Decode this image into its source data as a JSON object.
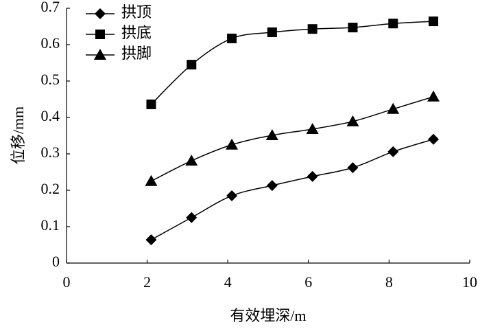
{
  "chart_data": {
    "type": "line",
    "x_label": "有效埋深/m",
    "y_label": "位移/mm",
    "x": [
      2.1,
      3.1,
      4.1,
      5.1,
      6.1,
      7.1,
      8.1,
      9.1
    ],
    "series": [
      {
        "name": "拱顶",
        "color": "#000000",
        "marker": "diamond",
        "values": [
          0.064,
          0.125,
          0.185,
          0.213,
          0.238,
          0.262,
          0.306,
          0.34
        ]
      },
      {
        "name": "拱底",
        "color": "#000000",
        "marker": "square",
        "values": [
          0.436,
          0.545,
          0.617,
          0.634,
          0.643,
          0.647,
          0.658,
          0.664
        ]
      },
      {
        "name": "拱脚",
        "color": "#000000",
        "marker": "triangle",
        "values": [
          0.225,
          0.281,
          0.325,
          0.351,
          0.368,
          0.389,
          0.423,
          0.457
        ]
      }
    ],
    "xlim": [
      0,
      10
    ],
    "xticks": [
      0,
      2,
      4,
      6,
      8,
      10
    ],
    "ylim": [
      0,
      0.7
    ],
    "yticks": [
      0,
      0.1,
      0.2,
      0.3,
      0.4,
      0.5,
      0.6,
      0.7
    ],
    "legend": "top-left"
  }
}
